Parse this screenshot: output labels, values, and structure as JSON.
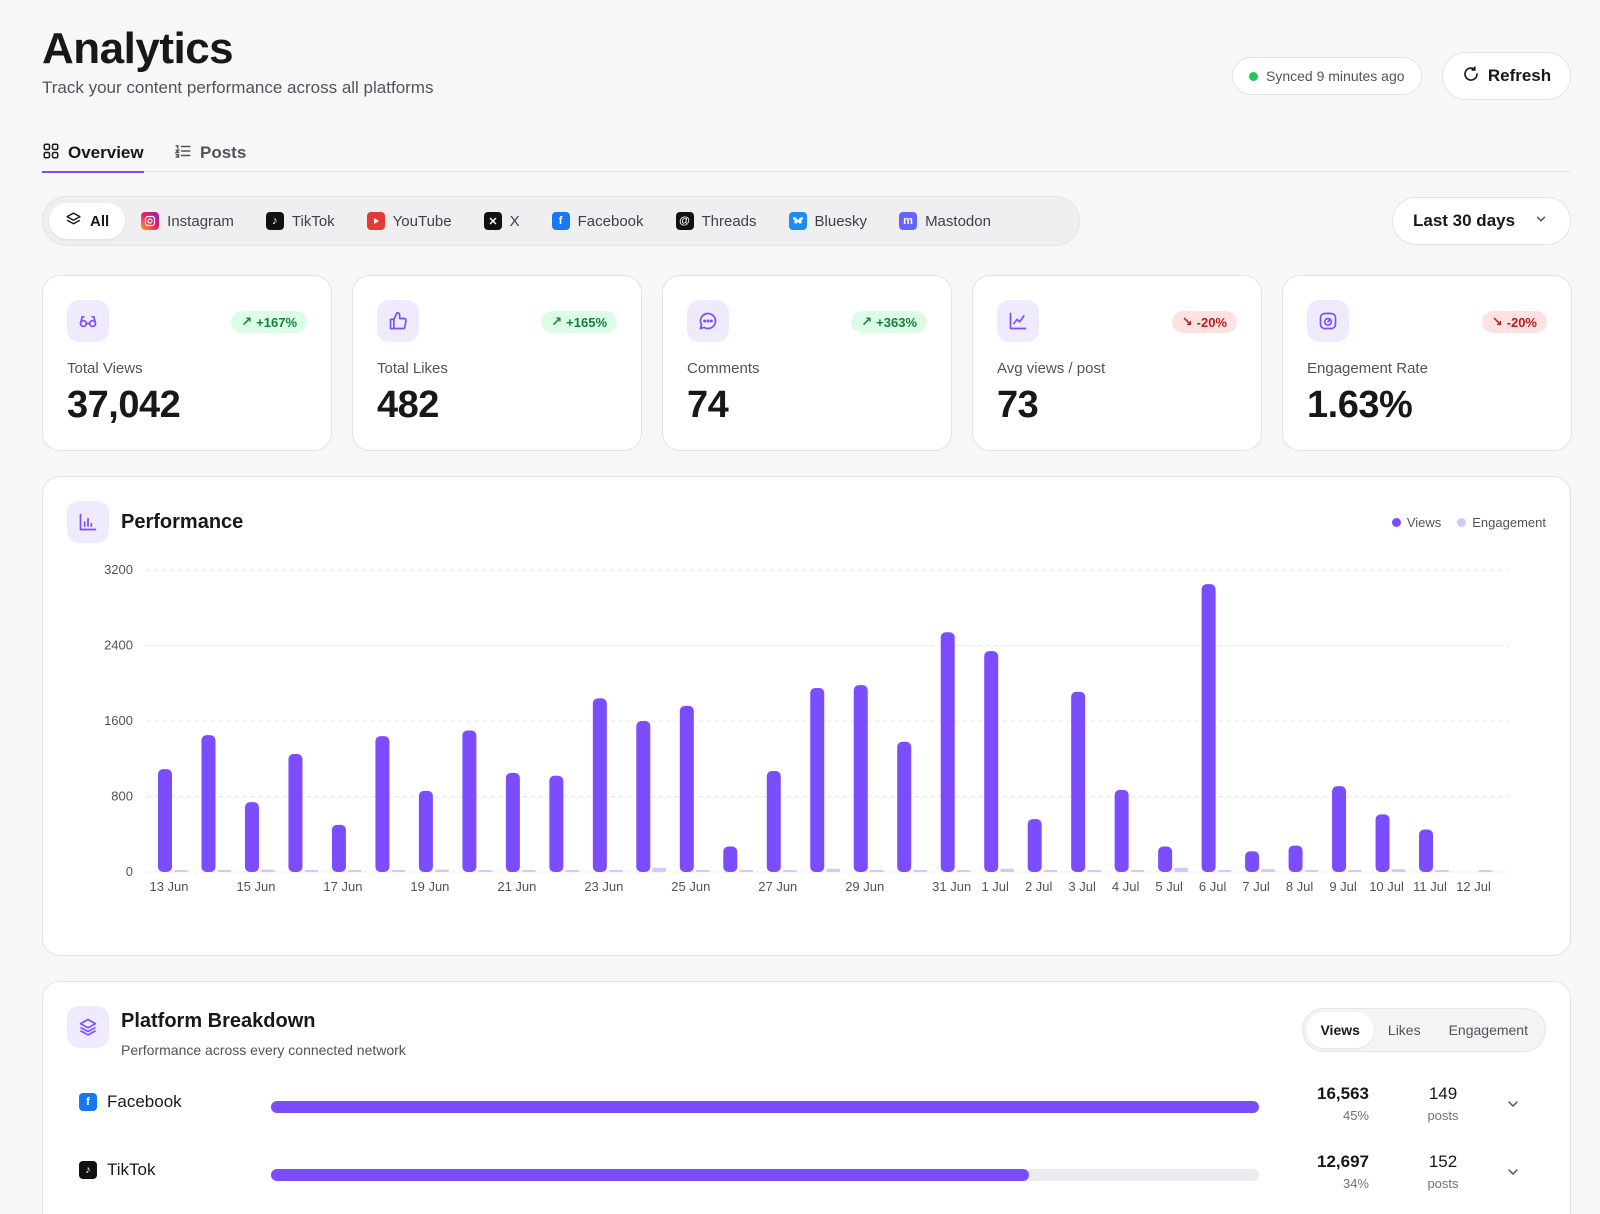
{
  "header": {
    "title": "Analytics",
    "subtitle": "Track your content performance across all platforms",
    "sync_status": "Synced 9 minutes ago",
    "refresh_label": "Refresh"
  },
  "tabs": [
    {
      "label": "Overview",
      "icon": "grid-icon",
      "active": true
    },
    {
      "label": "Posts",
      "icon": "list-icon",
      "active": false
    }
  ],
  "platforms": [
    {
      "label": "All",
      "icon": "layers-icon",
      "active": true
    },
    {
      "label": "Instagram",
      "icon": "instagram-icon"
    },
    {
      "label": "TikTok",
      "icon": "tiktok-icon"
    },
    {
      "label": "YouTube",
      "icon": "youtube-icon"
    },
    {
      "label": "X",
      "icon": "x-icon"
    },
    {
      "label": "Facebook",
      "icon": "facebook-icon"
    },
    {
      "label": "Threads",
      "icon": "threads-icon"
    },
    {
      "label": "Bluesky",
      "icon": "bluesky-icon"
    },
    {
      "label": "Mastodon",
      "icon": "mastodon-icon"
    }
  ],
  "date_range": "Last 30 days",
  "stats": [
    {
      "label": "Total Views",
      "value": "37,042",
      "change": "+167%",
      "direction": "up",
      "icon": "glasses-icon"
    },
    {
      "label": "Total Likes",
      "value": "482",
      "change": "+165%",
      "direction": "up",
      "icon": "thumbs-up-icon"
    },
    {
      "label": "Comments",
      "value": "74",
      "change": "+363%",
      "direction": "up",
      "icon": "chat-icon"
    },
    {
      "label": "Avg views / post",
      "value": "73",
      "change": "-20%",
      "direction": "down",
      "icon": "line-chart-icon"
    },
    {
      "label": "Engagement Rate",
      "value": "1.63%",
      "change": "-20%",
      "direction": "down",
      "icon": "gauge-icon"
    }
  ],
  "performance": {
    "title": "Performance",
    "legend": {
      "views": "Views",
      "engagement": "Engagement"
    }
  },
  "colors": {
    "accent": "#7c4dff",
    "engagement": "#d4c8fb",
    "up": "#15803d",
    "down": "#b91c1c"
  },
  "chart_data": {
    "type": "bar",
    "categories": [
      "13 Jun",
      "14 Jun",
      "15 Jun",
      "16 Jun",
      "17 Jun",
      "18 Jun",
      "19 Jun",
      "20 Jun",
      "21 Jun",
      "22 Jun",
      "23 Jun",
      "24 Jun",
      "25 Jun",
      "26 Jun",
      "27 Jun",
      "28 Jun",
      "29 Jun",
      "30 Jun",
      "31 Jun",
      "1 Jul",
      "2 Jul",
      "3 Jul",
      "4 Jul",
      "5 Jul",
      "6 Jul",
      "7 Jul",
      "8 Jul",
      "9 Jul",
      "10 Jul",
      "11 Jul",
      "12 Jul"
    ],
    "tick_labels": [
      "13 Jun",
      "",
      "15 Jun",
      "",
      "17 Jun",
      "",
      "19 Jun",
      "",
      "21 Jun",
      "",
      "23 Jun",
      "",
      "25 Jun",
      "",
      "27 Jun",
      "",
      "29 Jun",
      "",
      "31 Jun",
      "1 Jul",
      "2 Jul",
      "3 Jul",
      "4 Jul",
      "5 Jul",
      "6 Jul",
      "7 Jul",
      "8 Jul",
      "9 Jul",
      "10 Jul",
      "11 Jul",
      "12 Jul"
    ],
    "series": [
      {
        "name": "Views",
        "values": [
          1090,
          1450,
          740,
          1250,
          500,
          1440,
          860,
          1500,
          1050,
          1020,
          1840,
          1600,
          1760,
          270,
          1070,
          1950,
          1980,
          1380,
          2540,
          2340,
          560,
          1910,
          870,
          270,
          3050,
          220,
          280,
          910,
          610,
          450,
          0
        ]
      },
      {
        "name": "Engagement",
        "values": [
          0,
          5,
          25,
          15,
          0,
          10,
          25,
          22,
          20,
          15,
          10,
          45,
          10,
          10,
          20,
          35,
          15,
          20,
          10,
          35,
          20,
          15,
          20,
          45,
          10,
          30,
          10,
          20,
          30,
          15,
          10
        ]
      }
    ],
    "ylim": [
      0,
      3200
    ],
    "yticks": [
      0,
      800,
      1600,
      2400,
      3200
    ],
    "grid": true,
    "legend_position": "top-right"
  },
  "breakdown": {
    "title": "Platform Breakdown",
    "subtitle": "Performance across every connected network",
    "metrics": [
      {
        "label": "Views",
        "active": true
      },
      {
        "label": "Likes",
        "active": false
      },
      {
        "label": "Engagement",
        "active": false
      }
    ],
    "rows": [
      {
        "platform": "Facebook",
        "icon": "facebook-icon",
        "value": "16,563",
        "share": "45%",
        "share_fraction": 1.0,
        "posts": "149",
        "posts_label": "posts"
      },
      {
        "platform": "TikTok",
        "icon": "tiktok-icon",
        "value": "12,697",
        "share": "34%",
        "share_fraction": 0.767,
        "posts": "152",
        "posts_label": "posts"
      }
    ]
  }
}
